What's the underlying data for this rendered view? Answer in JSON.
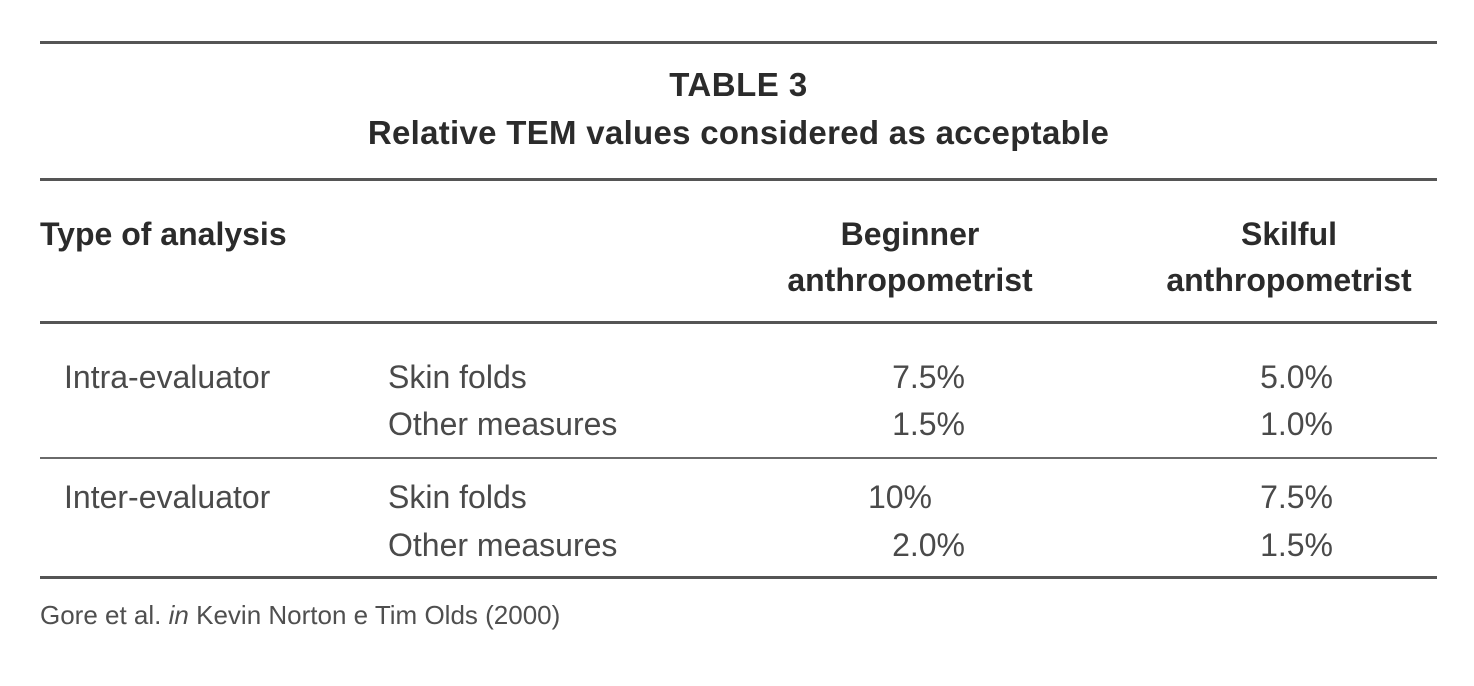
{
  "table": {
    "number": "TABLE 3",
    "title": "Relative TEM values considered as acceptable",
    "headers": {
      "type": "Type of analysis",
      "beginner_line1": "Beginner",
      "beginner_line2": "anthropometrist",
      "skilful_line1": "Skilful",
      "skilful_line2": "anthropometrist"
    },
    "groups": [
      {
        "label": "Intra-evaluator",
        "rows": [
          {
            "measure": "Skin folds",
            "beginner": "7.5%",
            "skilful": "5.0%"
          },
          {
            "measure": "Other measures",
            "beginner": "1.5%",
            "skilful": "1.0%"
          }
        ]
      },
      {
        "label": "Inter-evaluator",
        "rows": [
          {
            "measure": "Skin folds",
            "beginner": "10%",
            "skilful": "7.5%"
          },
          {
            "measure": "Other measures",
            "beginner": "2.0%",
            "skilful": "1.5%"
          }
        ]
      }
    ],
    "source": {
      "prefix": "Gore et al.",
      "italic": "in",
      "suffix": "Kevin Norton e Tim Olds (2000)"
    }
  }
}
